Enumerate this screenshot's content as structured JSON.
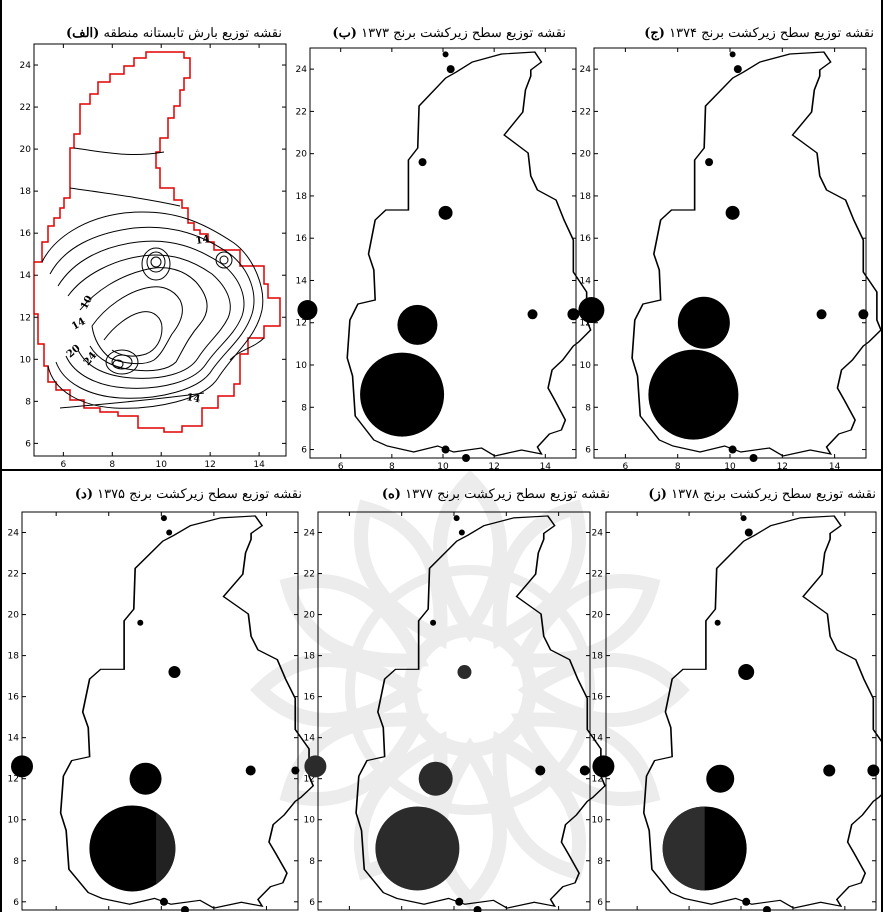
{
  "figure": {
    "panels": [
      {
        "id": "alef",
        "caption_text": "نقشه توزیع بارش تابستانه منطقه",
        "caption_letter": "(الف)",
        "type": "isohyet"
      },
      {
        "id": "be",
        "caption_text": "نقشه توزیع سطح زیرکشت برنج ۱۳۷۳",
        "caption_letter": "(ب)",
        "type": "bubble"
      },
      {
        "id": "jim",
        "caption_text": "نقشه توزیع سطح زیرکشت برنج ۱۳۷۴",
        "caption_letter": "(ج)",
        "type": "bubble"
      },
      {
        "id": "dal",
        "caption_text": "نقشه توزیع سطح زیرکشت برنج ۱۳۷۵",
        "caption_letter": "(د)",
        "type": "bubble"
      },
      {
        "id": "he",
        "caption_text": "نقشه توزیع سطح زیرکشت برنج ۱۳۷۷",
        "caption_letter": "(ه)",
        "type": "bubble"
      },
      {
        "id": "ze",
        "caption_text": "نقشه توزیع سطح زیرکشت برنج ۱۳۷۸",
        "caption_letter": "(ز)",
        "type": "bubble"
      }
    ],
    "x_ticks": [
      6,
      8,
      10,
      12,
      14
    ],
    "y_ticks": [
      6,
      8,
      10,
      12,
      14,
      16,
      18,
      20,
      22,
      24
    ],
    "contour_labels": [
      "14",
      "10",
      "14",
      "20",
      "24",
      "14"
    ],
    "colors": {
      "outline": "#000000",
      "boundary_red": "#e00000",
      "bubble": "#000000",
      "bubble_dark_gray": "#2b2b2b",
      "watermark": "#dddddd"
    }
  }
}
